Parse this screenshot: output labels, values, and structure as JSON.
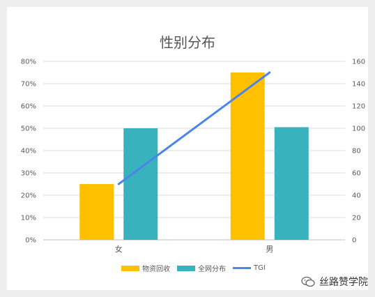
{
  "chart_data": {
    "type": "bar",
    "title": "性别分布",
    "categories": [
      "女",
      "男"
    ],
    "series": [
      {
        "name": "物资回收",
        "type": "bar",
        "axis": "left",
        "color": "#FFC000",
        "values": [
          0.25,
          0.75
        ]
      },
      {
        "name": "全网分布",
        "type": "bar",
        "axis": "left",
        "color": "#38B2BC",
        "values": [
          0.5,
          0.505
        ]
      },
      {
        "name": "TGI",
        "type": "line",
        "axis": "right",
        "color": "#4A86E8",
        "values": [
          50,
          150
        ]
      }
    ],
    "y_left": {
      "min": 0,
      "max": 0.8,
      "step": 0.1,
      "ticks": [
        "0%",
        "10%",
        "20%",
        "30%",
        "40%",
        "50%",
        "60%",
        "70%",
        "80%"
      ]
    },
    "y_right": {
      "min": 0,
      "max": 160,
      "step": 20,
      "ticks": [
        "0",
        "20",
        "40",
        "60",
        "80",
        "100",
        "120",
        "140",
        "160"
      ]
    },
    "grid": true,
    "legend_position": "bottom"
  },
  "watermark": {
    "text": "丝路赞学院",
    "icon": "wechat-icon"
  }
}
